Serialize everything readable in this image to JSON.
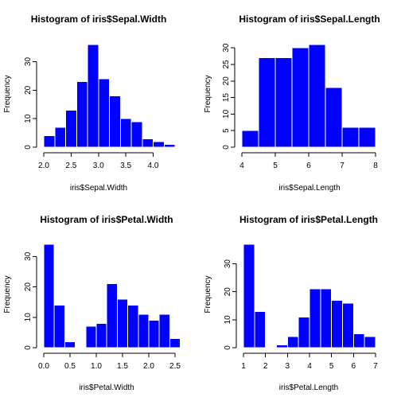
{
  "chart_data": [
    {
      "type": "bar",
      "title": "Histogram of iris$Sepal.Width",
      "xlabel": "iris$Sepal.Width",
      "ylabel": "Frequency",
      "bins": [
        [
          2.0,
          2.2
        ],
        [
          2.2,
          2.4
        ],
        [
          2.4,
          2.6
        ],
        [
          2.6,
          2.8
        ],
        [
          2.8,
          3.0
        ],
        [
          3.0,
          3.2
        ],
        [
          3.2,
          3.4
        ],
        [
          3.4,
          3.6
        ],
        [
          3.6,
          3.8
        ],
        [
          3.8,
          4.0
        ],
        [
          4.0,
          4.2
        ],
        [
          4.2,
          4.4
        ]
      ],
      "values": [
        4,
        7,
        13,
        23,
        36,
        24,
        18,
        10,
        9,
        3,
        2,
        1
      ],
      "xlim": [
        2.0,
        4.4
      ],
      "ylim": [
        0,
        36
      ],
      "xticks": [
        2.0,
        2.5,
        3.0,
        3.5,
        4.0
      ],
      "xtick_labels": [
        "2.0",
        "2.5",
        "3.0",
        "3.5",
        "4.0"
      ],
      "yticks": [
        0,
        10,
        20,
        30
      ],
      "ytick_labels": [
        "0",
        "10",
        "20",
        "30"
      ],
      "bar_color": "#0000ff",
      "grid": false
    },
    {
      "type": "bar",
      "title": "Histogram of iris$Sepal.Length",
      "xlabel": "iris$Sepal.Length",
      "ylabel": "Frequency",
      "bins": [
        [
          4.0,
          4.5
        ],
        [
          4.5,
          5.0
        ],
        [
          5.0,
          5.5
        ],
        [
          5.5,
          6.0
        ],
        [
          6.0,
          6.5
        ],
        [
          6.5,
          7.0
        ],
        [
          7.0,
          7.5
        ],
        [
          7.5,
          8.0
        ]
      ],
      "values": [
        5,
        27,
        27,
        30,
        31,
        18,
        6,
        6
      ],
      "xlim": [
        4,
        8
      ],
      "ylim": [
        0,
        31
      ],
      "xticks": [
        4,
        5,
        6,
        7,
        8
      ],
      "xtick_labels": [
        "4",
        "5",
        "6",
        "7",
        "8"
      ],
      "yticks": [
        0,
        5,
        10,
        15,
        20,
        25,
        30
      ],
      "ytick_labels": [
        "0",
        "5",
        "10",
        "15",
        "20",
        "25",
        "30"
      ],
      "bar_color": "#0000ff",
      "grid": false
    },
    {
      "type": "bar",
      "title": "Histogram of iris$Petal.Width",
      "xlabel": "iris$Petal.Width",
      "ylabel": "Frequency",
      "bins": [
        [
          0.0,
          0.2
        ],
        [
          0.2,
          0.4
        ],
        [
          0.4,
          0.6
        ],
        [
          0.6,
          0.8
        ],
        [
          0.8,
          1.0
        ],
        [
          1.0,
          1.2
        ],
        [
          1.2,
          1.4
        ],
        [
          1.4,
          1.6
        ],
        [
          1.6,
          1.8
        ],
        [
          1.8,
          2.0
        ],
        [
          2.0,
          2.2
        ],
        [
          2.2,
          2.4
        ],
        [
          2.4,
          2.6
        ]
      ],
      "values": [
        34,
        14,
        2,
        0,
        7,
        8,
        21,
        16,
        14,
        11,
        9,
        11,
        3
      ],
      "xlim": [
        0.0,
        2.5
      ],
      "ylim": [
        0,
        34
      ],
      "xticks": [
        0.0,
        0.5,
        1.0,
        1.5,
        2.0,
        2.5
      ],
      "xtick_labels": [
        "0.0",
        "0.5",
        "1.0",
        "1.5",
        "2.0",
        "2.5"
      ],
      "yticks": [
        0,
        10,
        20,
        30
      ],
      "ytick_labels": [
        "0",
        "10",
        "20",
        "30"
      ],
      "bar_color": "#0000ff",
      "grid": false
    },
    {
      "type": "bar",
      "title": "Histogram of iris$Petal.Length",
      "xlabel": "iris$Petal.Length",
      "ylabel": "Frequency",
      "bins": [
        [
          1.0,
          1.5
        ],
        [
          1.5,
          2.0
        ],
        [
          2.0,
          2.5
        ],
        [
          2.5,
          3.0
        ],
        [
          3.0,
          3.5
        ],
        [
          3.5,
          4.0
        ],
        [
          4.0,
          4.5
        ],
        [
          4.5,
          5.0
        ],
        [
          5.0,
          5.5
        ],
        [
          5.5,
          6.0
        ],
        [
          6.0,
          6.5
        ],
        [
          6.5,
          7.0
        ]
      ],
      "values": [
        37,
        13,
        0,
        1,
        4,
        11,
        21,
        21,
        17,
        16,
        5,
        4
      ],
      "xlim": [
        1,
        7
      ],
      "ylim": [
        0,
        37
      ],
      "xticks": [
        1,
        2,
        3,
        4,
        5,
        6,
        7
      ],
      "xtick_labels": [
        "1",
        "2",
        "3",
        "4",
        "5",
        "6",
        "7"
      ],
      "yticks": [
        0,
        10,
        20,
        30
      ],
      "ytick_labels": [
        "0",
        "10",
        "20",
        "30"
      ],
      "bar_color": "#0000ff",
      "grid": false
    }
  ]
}
